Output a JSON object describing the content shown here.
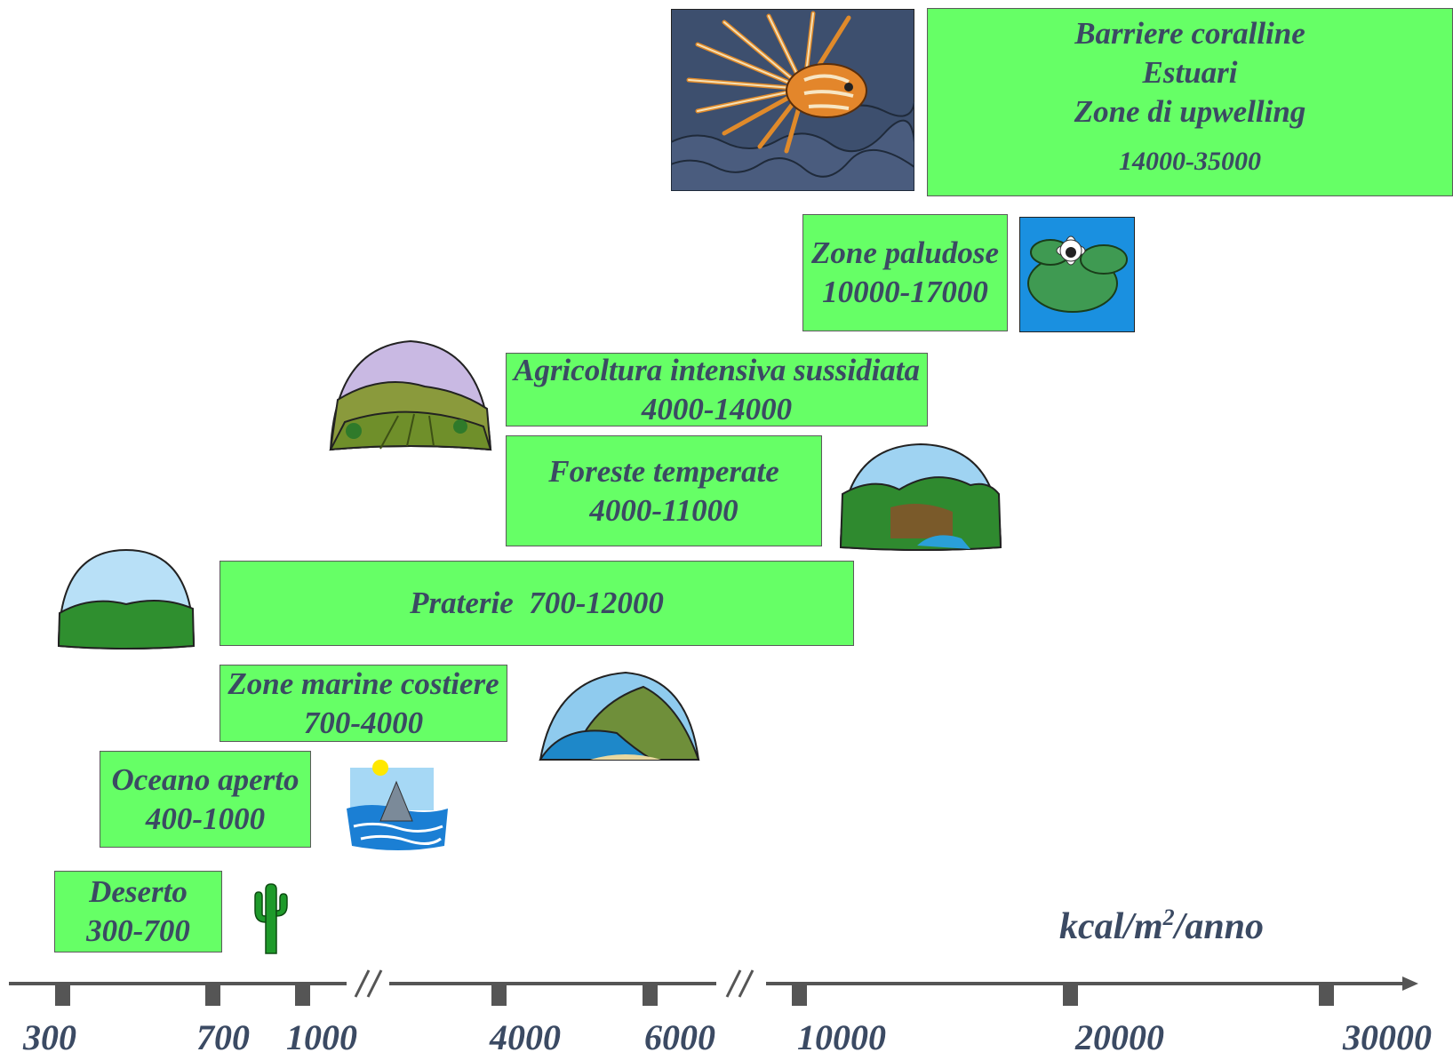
{
  "boxes": {
    "barriere": {
      "lines": [
        "Barriere coralline",
        "Estuari",
        "Zone di upwelling"
      ],
      "range": "14000-35000"
    },
    "paludose": {
      "name": "Zone paludose",
      "range": "10000-17000"
    },
    "agricoltura": {
      "name": "Agricoltura intensiva sussidiata",
      "range": "4000-14000"
    },
    "foreste": {
      "name": "Foreste temperate",
      "range": "4000-11000"
    },
    "praterie": {
      "name": "Praterie  700-12000"
    },
    "costiere": {
      "name": "Zone marine costiere",
      "range": "700-4000"
    },
    "oceano": {
      "name": "Oceano aperto",
      "range": "400-1000"
    },
    "deserto": {
      "name": "Deserto",
      "range": "300-700"
    }
  },
  "axis": {
    "unit_main": "kcal/m",
    "unit_sup": "2",
    "unit_tail": "/anno",
    "ticks": [
      "300",
      "700",
      "1000",
      "4000",
      "6000",
      "10000",
      "20000",
      "30000"
    ]
  },
  "illustrations": [
    "lionfish-reef",
    "water-lily",
    "farmland-dome",
    "forest-dome",
    "grassland-dome",
    "coast-dome",
    "shark-ocean",
    "cactus"
  ],
  "colors": {
    "box_fill": "#66ff66",
    "text": "#3b4a63",
    "axis": "#555555"
  }
}
